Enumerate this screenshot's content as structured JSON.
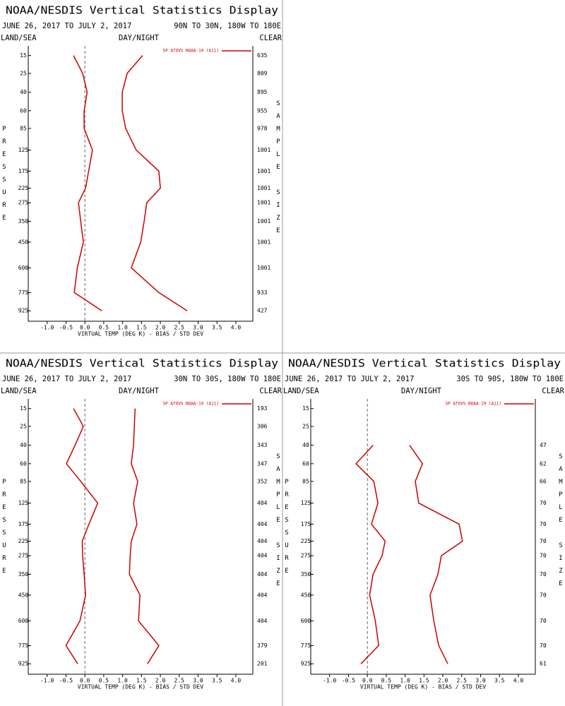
{
  "chart_data": [
    {
      "type": "profile",
      "title": "NOAA/NESDIS Vertical Statistics Display",
      "date_range": "JUNE 26, 2017 TO JULY 2, 2017",
      "region": "90N TO 30N, 180W TO 180E",
      "land_sea": "LAND/SEA",
      "day_night": "DAY/NIGHT",
      "sky": "CLEAR",
      "y_label": "PRESSURE",
      "y2_label": "SAMPLE SIZE",
      "x_label": "VIRTUAL TEMP (DEG K) - BIAS / STD DEV",
      "levels": [
        15,
        25,
        40,
        60,
        85,
        125,
        175,
        225,
        275,
        350,
        450,
        600,
        775,
        925
      ],
      "ylim": [
        11,
        1020
      ],
      "xlim": [
        -1.5,
        4.45
      ],
      "xticks": [
        {
          "value": -1,
          "label": "-1.0"
        },
        -0.5,
        {
          "value": 0,
          "label": "0.0"
        },
        0.5,
        {
          "value": 1,
          "label": "1.0"
        },
        1.5,
        {
          "value": 2,
          "label": "2.0"
        },
        2.5,
        {
          "value": 3,
          "label": "3.0"
        },
        3.5,
        {
          "value": 4,
          "label": "4.0"
        }
      ],
      "series": [
        {
          "name": "SP ATOVS NOAA-19 (A11)",
          "color": "#cc0000",
          "values": [
            -0.3,
            -0.06,
            0.06,
            -0.02,
            -0.02,
            0.2,
            0.1,
            0.02,
            -0.17,
            -0.11,
            -0.04,
            -0.2,
            -0.28,
            0.45
          ],
          "std_dev": [
            1.53,
            1.12,
            0.99,
            0.99,
            1.08,
            1.36,
            1.96,
            2.0,
            1.64,
            1.57,
            1.48,
            1.23,
            1.96,
            2.71
          ]
        }
      ],
      "sample_size": [
        635,
        809,
        895,
        955,
        978,
        1001,
        1001,
        1001,
        1001,
        1001,
        1001,
        1001,
        933,
        427
      ]
    },
    {
      "type": "profile",
      "title": "NOAA/NESDIS Vertical Statistics Display",
      "date_range": "JUNE 26, 2017 TO JULY 2, 2017",
      "region": "30N TO 30S, 180W TO 180E",
      "land_sea": "LAND/SEA",
      "day_night": "DAY/NIGHT",
      "sky": "CLEAR",
      "y_label": "PRESSURE",
      "y2_label": "SAMPLE SIZE",
      "x_label": "VIRTUAL TEMP (DEG K) - BIAS / STD DEV",
      "levels": [
        15,
        25,
        40,
        60,
        85,
        125,
        175,
        225,
        275,
        350,
        450,
        600,
        775,
        925
      ],
      "ylim": [
        11,
        1020
      ],
      "xlim": [
        -1.5,
        4.45
      ],
      "xticks": [
        {
          "value": -1,
          "label": "-1.0"
        },
        -0.5,
        {
          "value": 0,
          "label": "0.0"
        },
        0.5,
        {
          "value": 1,
          "label": "1.0"
        },
        1.5,
        {
          "value": 2,
          "label": "2.0"
        },
        2.5,
        {
          "value": 3,
          "label": "3.0"
        },
        3.5,
        {
          "value": 4,
          "label": "4.0"
        }
      ],
      "series": [
        {
          "name": "SP ATOVS NOAA-19 (A11)",
          "color": "#cc0000",
          "values": [
            -0.3,
            -0.04,
            -0.26,
            -0.49,
            -0.11,
            0.34,
            0.11,
            -0.07,
            -0.06,
            -0.02,
            0.02,
            -0.13,
            -0.5,
            -0.19
          ],
          "std_dev": [
            1.33,
            1.31,
            1.29,
            1.23,
            1.4,
            1.29,
            1.38,
            1.23,
            1.2,
            1.18,
            1.46,
            1.42,
            1.96,
            1.66
          ]
        }
      ],
      "sample_size": [
        193,
        306,
        343,
        347,
        352,
        404,
        404,
        404,
        404,
        404,
        404,
        404,
        379,
        201
      ]
    },
    {
      "type": "profile",
      "title": "NOAA/NESDIS Vertical Statistics Display",
      "date_range": "JUNE 26, 2017 TO JULY 2, 2017",
      "region": "30S TO 90S, 180W TO 180E",
      "land_sea": "LAND/SEA",
      "day_night": "DAY/NIGHT",
      "sky": "CLEAR",
      "y_label": "PRESSURE",
      "y2_label": "SAMPLE SIZE",
      "x_label": "VIRTUAL TEMP (DEG K) - BIAS / STD DEV",
      "levels": [
        15,
        25,
        40,
        60,
        85,
        125,
        175,
        225,
        275,
        350,
        450,
        600,
        775,
        925
      ],
      "ylim": [
        11,
        1020
      ],
      "xlim": [
        -1.5,
        4.45
      ],
      "xticks": [
        {
          "value": -1,
          "label": "-1.0"
        },
        -0.5,
        {
          "value": 0,
          "label": "0.0"
        },
        0.5,
        {
          "value": 1,
          "label": "1.0"
        },
        1.5,
        {
          "value": 2,
          "label": "2.0"
        },
        2.5,
        {
          "value": 3,
          "label": "3.0"
        },
        3.5,
        {
          "value": 4,
          "label": "4.0"
        }
      ],
      "series": [
        {
          "name": "SP ATOVS NOAA-19 (A11)",
          "color": "#cc0000",
          "values": [
            null,
            null,
            0.15,
            -0.3,
            0.17,
            0.28,
            0.11,
            0.47,
            0.39,
            0.15,
            0.06,
            0.21,
            0.3,
            -0.17
          ],
          "std_dev": [
            null,
            null,
            1.12,
            1.46,
            1.27,
            1.36,
            2.43,
            2.52,
            1.96,
            1.87,
            1.66,
            1.76,
            1.89,
            2.13
          ]
        }
      ],
      "sample_size": [
        null,
        null,
        47,
        62,
        66,
        70,
        70,
        70,
        70,
        70,
        70,
        70,
        70,
        61
      ]
    }
  ]
}
